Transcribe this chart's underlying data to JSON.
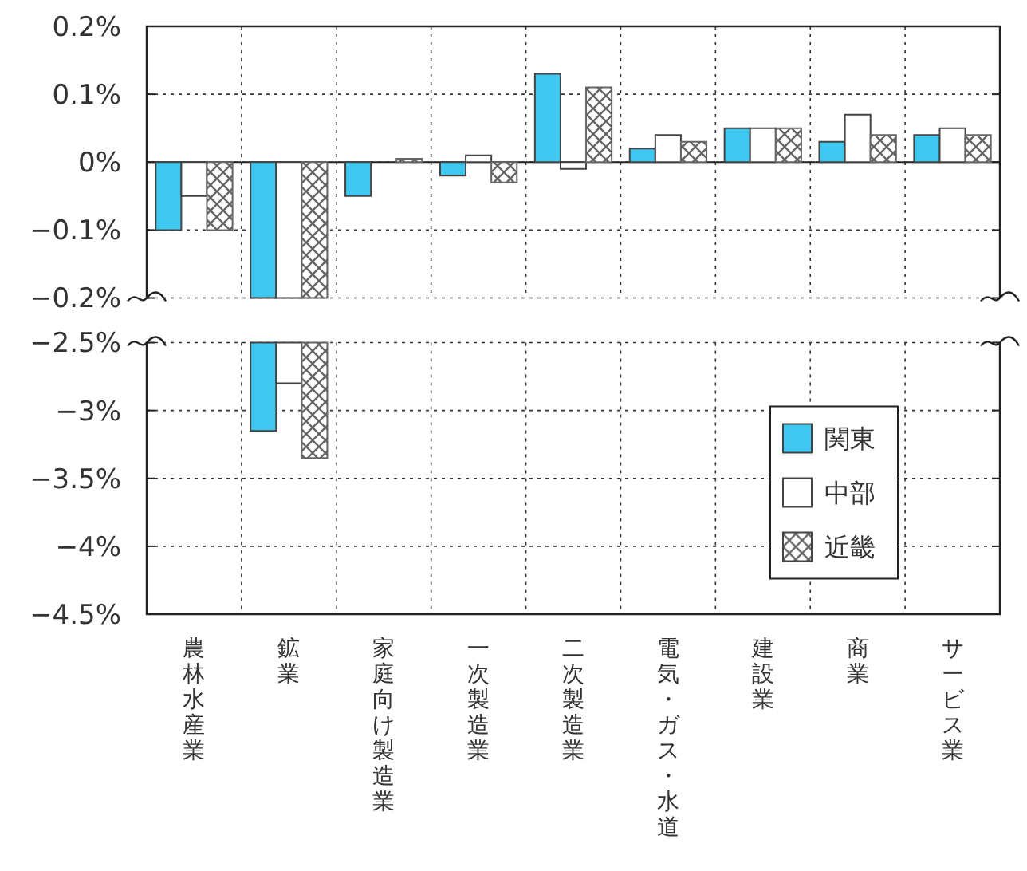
{
  "chart_data": [
    {
      "type": "bar",
      "categories": [
        "農林水産業",
        "鉱業",
        "家庭向け製造業",
        "一次製造業",
        "二次製造業",
        "電気・ガス・水道",
        "建設業",
        "商業",
        "サービス業"
      ],
      "series": [
        {
          "color": "#3ec8f0",
          "values": [
            -0.1,
            null,
            -0.05,
            -0.02,
            0.13,
            0.02,
            0.05,
            0.03,
            0.04
          ]
        },
        {
          "color": "#ffffff",
          "values": [
            -0.05,
            null,
            0,
            0.01,
            -0.01,
            0.04,
            0.05,
            0.07,
            0.05
          ]
        },
        {
          "color": "#666666",
          "values": [
            -0.1,
            null,
            0.005,
            -0.03,
            0.11,
            0.03,
            0.05,
            0.04,
            0.04
          ]
        }
      ],
      "ylim": [
        -0.2,
        0.2
      ],
      "yticks": [
        {
          "value": -0.2,
          "label": "−0.2%"
        },
        {
          "value": -0.1,
          "label": "−0.1%"
        },
        {
          "value": 0,
          "label": "0%"
        },
        {
          "value": 0.1,
          "label": "0.1%"
        },
        {
          "value": 0.2,
          "label": "0.2%"
        }
      ],
      "tick_labels": "y",
      "grid": true
    },
    {
      "type": "bar",
      "categories": [
        "農林水産業",
        "鉱業",
        "家庭向け製造業",
        "一次製造業",
        "二次製造業",
        "電気・ガス・水道",
        "建設業",
        "商業",
        "サービス業"
      ],
      "series": [
        {
          "name": "関東",
          "color": "#3ec8f0",
          "values": [
            null,
            -3.15,
            null,
            null,
            null,
            null,
            null,
            null,
            null
          ]
        },
        {
          "name": "中部",
          "color": "#ffffff",
          "values": [
            null,
            -2.8,
            null,
            null,
            null,
            null,
            null,
            null,
            null
          ]
        },
        {
          "name": "近畿",
          "color": "#666666",
          "values": [
            null,
            -3.35,
            null,
            null,
            null,
            null,
            null,
            null,
            null
          ]
        }
      ],
      "ylim": [
        -4.5,
        -2.5
      ],
      "yticks": [
        {
          "value": -4.5,
          "label": "−4.5%"
        },
        {
          "value": -4,
          "label": "−4%"
        },
        {
          "value": -3.5,
          "label": "−3.5%"
        },
        {
          "value": -3,
          "label": "−3%"
        },
        {
          "value": -2.5,
          "label": "−2.5%"
        }
      ],
      "grid": true,
      "legend": "right"
    }
  ]
}
